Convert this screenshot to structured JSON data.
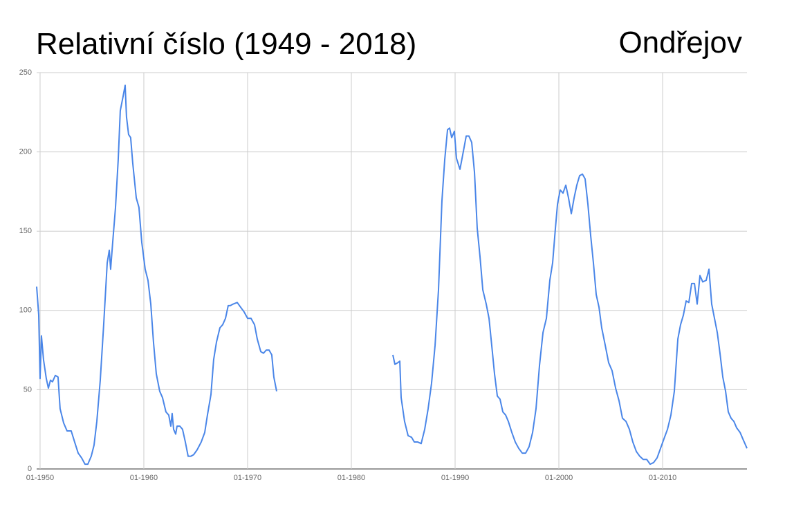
{
  "chart_data": {
    "type": "line",
    "title": "Relativní číslo (1949 - 2018)",
    "subtitle": "Ondřejov",
    "x": [
      1949.67,
      1949.87,
      1950.0,
      1950.13,
      1950.33,
      1950.6,
      1950.8,
      1951.0,
      1951.2,
      1951.47,
      1951.73,
      1951.93,
      1952.27,
      1952.6,
      1953.0,
      1953.33,
      1953.67,
      1954.0,
      1954.33,
      1954.6,
      1954.93,
      1955.2,
      1955.47,
      1955.8,
      1956.13,
      1956.47,
      1956.67,
      1956.8,
      1957.0,
      1957.27,
      1957.53,
      1957.73,
      1958.0,
      1958.2,
      1958.33,
      1958.53,
      1958.73,
      1958.93,
      1959.27,
      1959.53,
      1959.8,
      1960.13,
      1960.4,
      1960.67,
      1960.93,
      1961.2,
      1961.53,
      1961.8,
      1962.13,
      1962.4,
      1962.6,
      1962.73,
      1962.87,
      1963.07,
      1963.2,
      1963.47,
      1963.73,
      1964.0,
      1964.27,
      1964.53,
      1964.8,
      1965.13,
      1965.53,
      1965.87,
      1966.13,
      1966.47,
      1966.73,
      1967.0,
      1967.33,
      1967.6,
      1967.87,
      1968.13,
      1968.33,
      1968.6,
      1969.0,
      1969.33,
      1969.67,
      1970.0,
      1970.33,
      1970.67,
      1970.93,
      1971.27,
      1971.53,
      1971.8,
      1972.07,
      1972.33,
      1972.53,
      1972.8,
      1978.0,
      1984.0,
      1984.2,
      1984.47,
      1984.67,
      1984.8,
      1985.13,
      1985.47,
      1985.8,
      1986.07,
      1986.4,
      1986.73,
      1987.07,
      1987.4,
      1987.73,
      1988.07,
      1988.4,
      1988.73,
      1989.0,
      1989.27,
      1989.47,
      1989.67,
      1989.93,
      1990.13,
      1990.47,
      1990.73,
      1991.07,
      1991.33,
      1991.6,
      1991.87,
      1992.13,
      1992.4,
      1992.67,
      1993.0,
      1993.27,
      1993.53,
      1993.8,
      1994.07,
      1994.33,
      1994.6,
      1994.87,
      1995.13,
      1995.47,
      1995.8,
      1996.13,
      1996.47,
      1996.8,
      1997.13,
      1997.47,
      1997.8,
      1998.13,
      1998.47,
      1998.8,
      1999.13,
      1999.4,
      1999.67,
      1999.87,
      2000.13,
      2000.4,
      2000.67,
      2000.93,
      2001.2,
      2001.47,
      2001.73,
      2002.0,
      2002.27,
      2002.53,
      2002.8,
      2003.07,
      2003.33,
      2003.6,
      2003.87,
      2004.13,
      2004.47,
      2004.8,
      2005.13,
      2005.47,
      2005.8,
      2006.13,
      2006.47,
      2006.8,
      2007.13,
      2007.47,
      2007.8,
      2008.13,
      2008.47,
      2008.8,
      2009.13,
      2009.47,
      2009.8,
      2010.13,
      2010.47,
      2010.8,
      2011.13,
      2011.47,
      2011.73,
      2012.0,
      2012.27,
      2012.53,
      2012.8,
      2013.07,
      2013.33,
      2013.6,
      2013.87,
      2014.2,
      2014.47,
      2014.73,
      2015.0,
      2015.27,
      2015.53,
      2015.8,
      2016.07,
      2016.33,
      2016.6,
      2016.87,
      2017.13,
      2017.47,
      2017.73,
      2018.0,
      2018.13
    ],
    "series": [
      {
        "color": "#4a86e8",
        "values": [
          115,
          97,
          57,
          84,
          69,
          57,
          51,
          56,
          55,
          59,
          58,
          38,
          29,
          24,
          24,
          17,
          10,
          7,
          3,
          3,
          8,
          15,
          30,
          56,
          91,
          130,
          138,
          126,
          143,
          165,
          195,
          226,
          235,
          242,
          222,
          211,
          209,
          193,
          171,
          165,
          143,
          126,
          119,
          104,
          80,
          60,
          49,
          45,
          36,
          34,
          27,
          35,
          25,
          22,
          27,
          27,
          25,
          17,
          8,
          8,
          9,
          12,
          17,
          23,
          34,
          47,
          69,
          80,
          89,
          91,
          95,
          103,
          103,
          104,
          105,
          102,
          99,
          95,
          95,
          91,
          82,
          74,
          73,
          75,
          75,
          72,
          58,
          49,
          null,
          72,
          66,
          67,
          68,
          45,
          30,
          21,
          20,
          17,
          17,
          16,
          25,
          38,
          54,
          78,
          113,
          169,
          195,
          214,
          215,
          209,
          213,
          196,
          189,
          198,
          210,
          210,
          206,
          187,
          152,
          134,
          113,
          104,
          95,
          78,
          60,
          46,
          44,
          36,
          34,
          30,
          23,
          17,
          13,
          10,
          10,
          14,
          23,
          38,
          65,
          86,
          95,
          119,
          130,
          152,
          167,
          176,
          174,
          179,
          171,
          161,
          171,
          179,
          185,
          186,
          183,
          167,
          147,
          130,
          110,
          102,
          89,
          78,
          67,
          62,
          51,
          43,
          32,
          30,
          25,
          17,
          11,
          8,
          6,
          6,
          3,
          4,
          7,
          13,
          19,
          25,
          34,
          49,
          82,
          91,
          97,
          106,
          105,
          117,
          117,
          104,
          122,
          118,
          119,
          126,
          104,
          95,
          86,
          73,
          58,
          49,
          36,
          32,
          30,
          26,
          23,
          19,
          15,
          13
        ]
      }
    ],
    "xlim": [
      1949.67,
      2018.13
    ],
    "xticks": [
      {
        "value": 1950,
        "label": "01-1950"
      },
      {
        "value": 1960,
        "label": "01-1960"
      },
      {
        "value": 1970,
        "label": "01-1970"
      },
      {
        "value": 1980,
        "label": "01-1980"
      },
      {
        "value": 1990,
        "label": "01-1990"
      },
      {
        "value": 2000,
        "label": "01-2000"
      },
      {
        "value": 2010,
        "label": "01-2010"
      }
    ],
    "ylim": [
      0,
      250
    ],
    "yticks": [
      0,
      50,
      100,
      150,
      200,
      250
    ],
    "grid": true
  }
}
